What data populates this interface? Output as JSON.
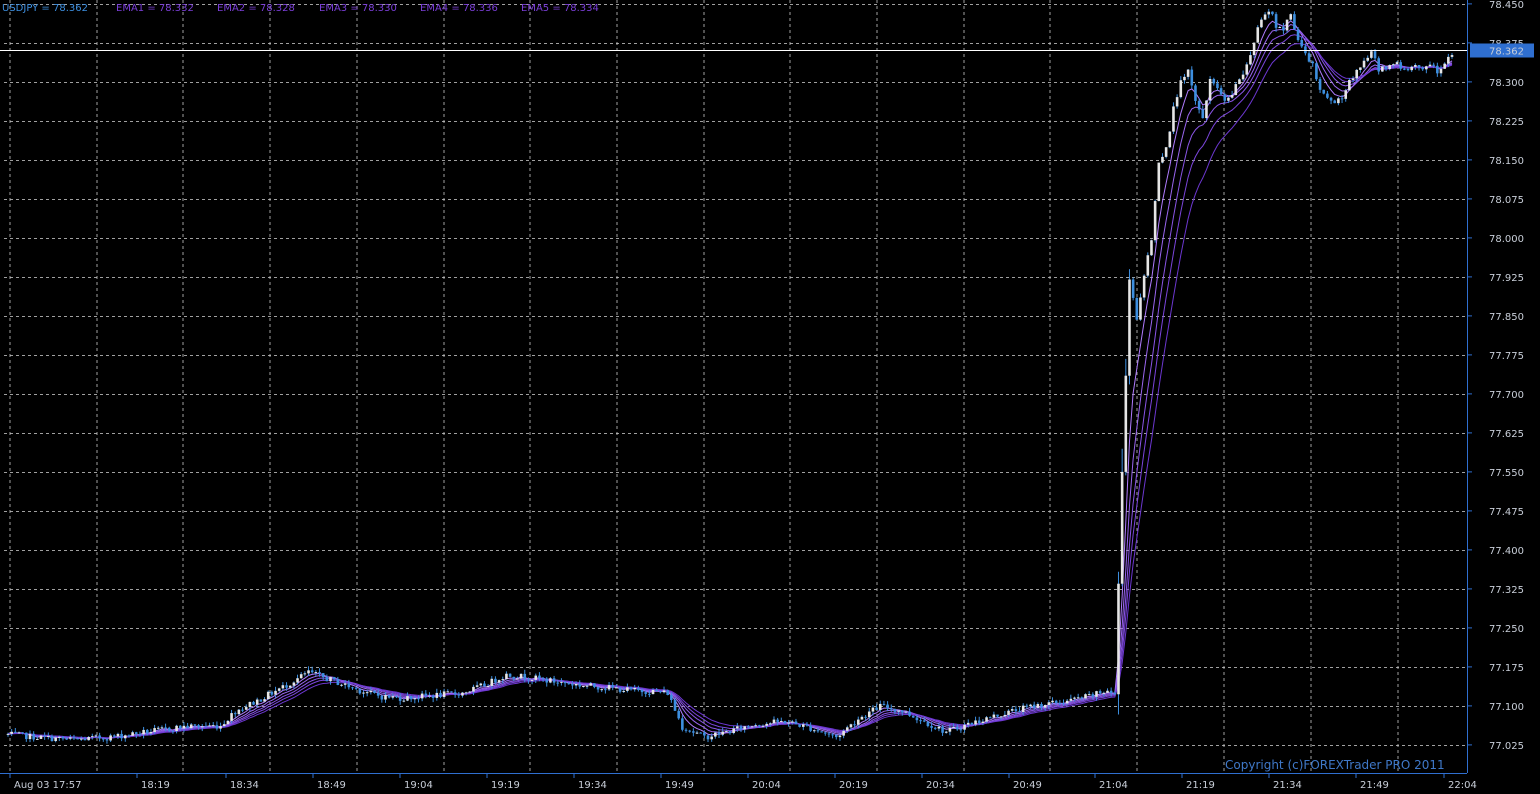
{
  "colors": {
    "background": "#000000",
    "grid": "#c8c8c8",
    "axis": "#2f6fd0",
    "bull_body": "#e6e6e6",
    "bear_body": "#3d8fe0",
    "wick": "#3d8fe0",
    "price_line": "#ffffff",
    "ema": [
      "#b07cff",
      "#9a66f0",
      "#8a55e6",
      "#7b45dc",
      "#6c37d0"
    ],
    "header_symbol": "#3d8fe0",
    "header_ema": "#7b3fd8"
  },
  "header": {
    "symbol_text": "USDJPY = 78.362",
    "ema_texts": [
      "EMA1 = 78.332",
      "EMA2 = 78.328",
      "EMA3 = 78.330",
      "EMA4 = 78.336",
      "EMA5 = 78.334"
    ]
  },
  "copyright": "Copyright (c)FOREXTrader PRO 2011",
  "chart_data": {
    "type": "candlestick",
    "symbol": "USDJPY",
    "current_price": 78.362,
    "current_price_label": "78.362",
    "ylim": [
      76.99,
      78.46
    ],
    "y_ticks": [
      "78.450",
      "78.375",
      "78.300",
      "78.225",
      "78.150",
      "78.075",
      "78.000",
      "77.925",
      "77.850",
      "77.775",
      "77.700",
      "77.625",
      "77.550",
      "77.475",
      "77.400",
      "77.325",
      "77.250",
      "77.175",
      "77.100",
      "77.025"
    ],
    "x_ticks": [
      "Aug 03 17:57",
      "18:19",
      "18:34",
      "18:49",
      "19:04",
      "19:19",
      "19:34",
      "19:49",
      "20:04",
      "20:19",
      "20:34",
      "20:49",
      "21:04",
      "21:19",
      "21:34",
      "21:49",
      "22:04"
    ],
    "close_path": [
      [
        0,
        77.045
      ],
      [
        8,
        77.04
      ],
      [
        18,
        77.035
      ],
      [
        28,
        77.04
      ],
      [
        38,
        77.05
      ],
      [
        48,
        77.06
      ],
      [
        58,
        77.062
      ],
      [
        62,
        77.09
      ],
      [
        68,
        77.11
      ],
      [
        76,
        77.14
      ],
      [
        82,
        77.165
      ],
      [
        88,
        77.15
      ],
      [
        96,
        77.13
      ],
      [
        102,
        77.118
      ],
      [
        108,
        77.115
      ],
      [
        116,
        77.12
      ],
      [
        124,
        77.125
      ],
      [
        130,
        77.14
      ],
      [
        136,
        77.16
      ],
      [
        142,
        77.155
      ],
      [
        148,
        77.148
      ],
      [
        156,
        77.14
      ],
      [
        164,
        77.135
      ],
      [
        170,
        77.13
      ],
      [
        176,
        77.128
      ],
      [
        180,
        77.125
      ],
      [
        184,
        77.06
      ],
      [
        190,
        77.04
      ],
      [
        196,
        77.05
      ],
      [
        204,
        77.065
      ],
      [
        212,
        77.07
      ],
      [
        218,
        77.06
      ],
      [
        226,
        77.04
      ],
      [
        232,
        77.075
      ],
      [
        238,
        77.1
      ],
      [
        244,
        77.09
      ],
      [
        250,
        77.07
      ],
      [
        256,
        77.05
      ],
      [
        262,
        77.065
      ],
      [
        268,
        77.078
      ],
      [
        274,
        77.09
      ],
      [
        280,
        77.1
      ],
      [
        288,
        77.108
      ],
      [
        296,
        77.12
      ],
      [
        300,
        77.13
      ],
      [
        302,
        77.12
      ],
      [
        304,
        77.55
      ],
      [
        306,
        77.92
      ],
      [
        308,
        77.84
      ],
      [
        310,
        77.93
      ],
      [
        312,
        78.0
      ],
      [
        314,
        78.15
      ],
      [
        316,
        78.17
      ],
      [
        318,
        78.25
      ],
      [
        320,
        78.3
      ],
      [
        322,
        78.32
      ],
      [
        324,
        78.26
      ],
      [
        326,
        78.23
      ],
      [
        328,
        78.3
      ],
      [
        330,
        78.29
      ],
      [
        332,
        78.26
      ],
      [
        334,
        78.28
      ],
      [
        336,
        78.3
      ],
      [
        338,
        78.33
      ],
      [
        340,
        78.38
      ],
      [
        342,
        78.42
      ],
      [
        344,
        78.44
      ],
      [
        346,
        78.41
      ],
      [
        348,
        78.4
      ],
      [
        350,
        78.43
      ],
      [
        352,
        78.38
      ],
      [
        354,
        78.35
      ],
      [
        356,
        78.33
      ],
      [
        358,
        78.29
      ],
      [
        360,
        78.27
      ],
      [
        362,
        78.26
      ],
      [
        364,
        78.27
      ],
      [
        366,
        78.3
      ],
      [
        368,
        78.32
      ],
      [
        370,
        78.34
      ],
      [
        372,
        78.36
      ],
      [
        374,
        78.32
      ],
      [
        376,
        78.33
      ],
      [
        378,
        78.34
      ],
      [
        380,
        78.33
      ],
      [
        382,
        78.32
      ],
      [
        384,
        78.33
      ],
      [
        386,
        78.32
      ],
      [
        388,
        78.33
      ],
      [
        390,
        78.32
      ],
      [
        392,
        78.34
      ],
      [
        394,
        78.355
      ]
    ],
    "ema_periods": [
      5,
      8,
      11,
      14,
      18
    ],
    "total_bars": 395
  }
}
